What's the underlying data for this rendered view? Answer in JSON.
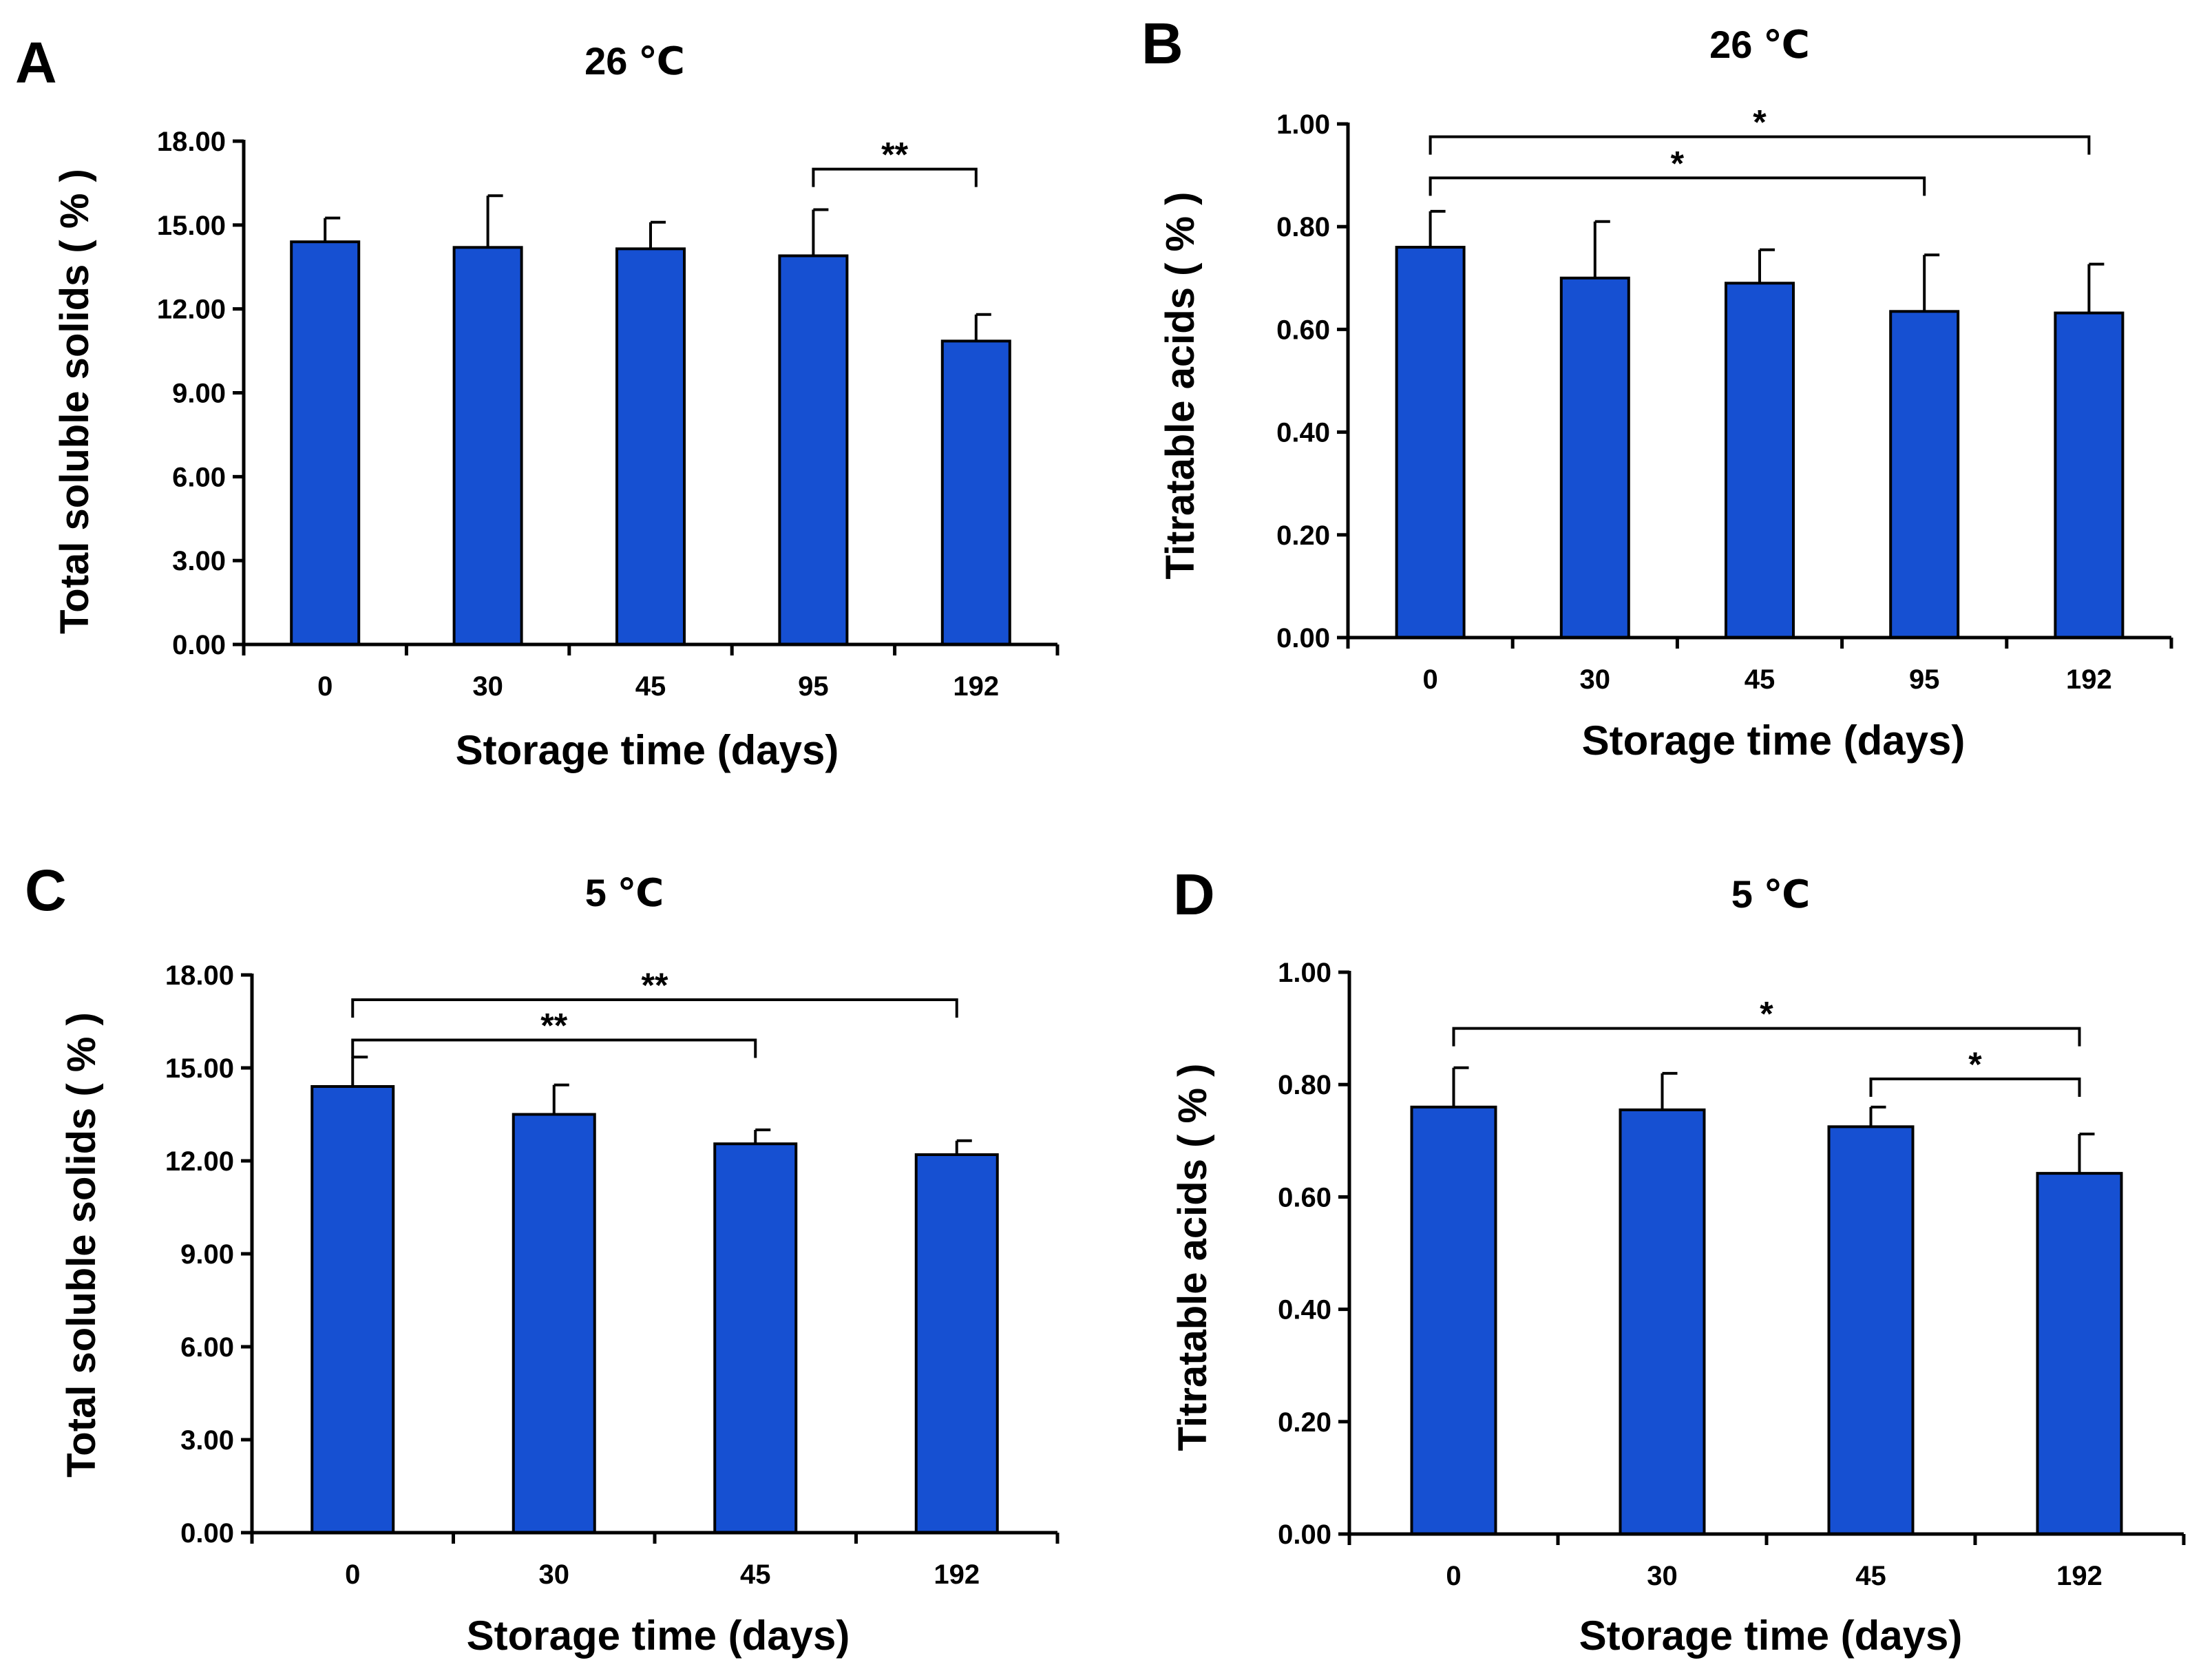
{
  "figure": {
    "bar_color": "#1650D2",
    "axis_color": "#000000"
  },
  "chart_data": [
    {
      "panel": "A",
      "type": "bar",
      "title": "26 ℃",
      "xlabel": "Storage time (days)",
      "ylabel": "Total soluble solids ( % )",
      "categories": [
        "0",
        "30",
        "45",
        "95",
        "192"
      ],
      "values": [
        14.4,
        14.2,
        14.15,
        13.9,
        10.85
      ],
      "errors": [
        0.85,
        1.85,
        0.95,
        1.65,
        0.95
      ],
      "ylim": [
        0,
        18
      ],
      "yticks": [
        0,
        3,
        6,
        9,
        12,
        15,
        18
      ],
      "ytick_labels": [
        "0.00",
        "3.00",
        "6.00",
        "9.00",
        "12.00",
        "15.00",
        "18.00"
      ],
      "significance": [
        {
          "from": 3,
          "to": 4,
          "level": 17.0,
          "label": "**"
        }
      ]
    },
    {
      "panel": "B",
      "type": "bar",
      "title": "26 ℃",
      "xlabel": "Storage time (days)",
      "ylabel": "Titratable acids ( % )",
      "categories": [
        "0",
        "30",
        "45",
        "95",
        "192"
      ],
      "values": [
        0.76,
        0.7,
        0.69,
        0.635,
        0.632
      ],
      "errors": [
        0.07,
        0.11,
        0.065,
        0.11,
        0.095
      ],
      "ylim": [
        0,
        1
      ],
      "yticks": [
        0,
        0.2,
        0.4,
        0.6,
        0.8,
        1.0
      ],
      "ytick_labels": [
        "0.00",
        "0.20",
        "0.40",
        "0.60",
        "0.80",
        "1.00"
      ],
      "significance": [
        {
          "from": 0,
          "to": 4,
          "level": 0.975,
          "label": "*"
        },
        {
          "from": 0,
          "to": 3,
          "level": 0.895,
          "label": "*"
        }
      ]
    },
    {
      "panel": "C",
      "type": "bar",
      "title": "5 ℃",
      "xlabel": "Storage time (days)",
      "ylabel": "Total soluble solids ( % )",
      "categories": [
        "0",
        "30",
        "45",
        "192"
      ],
      "values": [
        14.4,
        13.5,
        12.55,
        12.2
      ],
      "errors": [
        0.95,
        0.95,
        0.45,
        0.45
      ],
      "ylim": [
        0,
        18
      ],
      "yticks": [
        0,
        3,
        6,
        9,
        12,
        15,
        18
      ],
      "ytick_labels": [
        "0.00",
        "3.00",
        "6.00",
        "9.00",
        "12.00",
        "15.00",
        "18.00"
      ],
      "significance": [
        {
          "from": 0,
          "to": 3,
          "level": 17.2,
          "label": "**"
        },
        {
          "from": 0,
          "to": 2,
          "level": 15.9,
          "label": "**"
        }
      ]
    },
    {
      "panel": "D",
      "type": "bar",
      "title": "5 ℃",
      "xlabel": "Storage time (days)",
      "ylabel": "Titratable acids ( % )",
      "categories": [
        "0",
        "30",
        "45",
        "192"
      ],
      "values": [
        0.76,
        0.755,
        0.725,
        0.642
      ],
      "errors": [
        0.07,
        0.065,
        0.035,
        0.07
      ],
      "ylim": [
        0,
        1
      ],
      "yticks": [
        0,
        0.2,
        0.4,
        0.6,
        0.8,
        1.0
      ],
      "ytick_labels": [
        "0.00",
        "0.20",
        "0.40",
        "0.60",
        "0.80",
        "1.00"
      ],
      "significance": [
        {
          "from": 0,
          "to": 3,
          "level": 0.9,
          "label": "*"
        },
        {
          "from": 2,
          "to": 3,
          "level": 0.81,
          "label": "*"
        }
      ]
    }
  ]
}
